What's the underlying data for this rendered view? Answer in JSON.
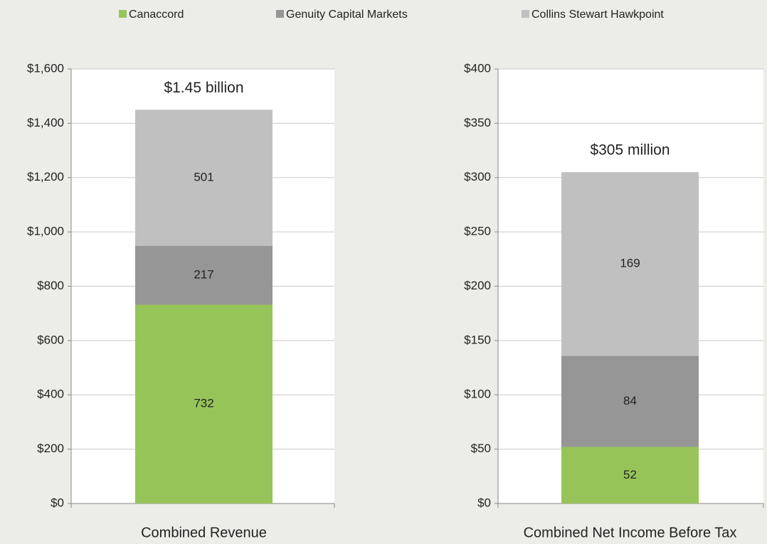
{
  "chart_data": [
    {
      "type": "bar",
      "stacked": true,
      "categories": [
        "Combined Revenue"
      ],
      "annotation": "$1.45 billion",
      "series": [
        {
          "name": "Canaccord",
          "color": "#97c459",
          "values": [
            732
          ]
        },
        {
          "name": "Genuity Capital Markets",
          "color": "#969696",
          "values": [
            217
          ]
        },
        {
          "name": "Collins Stewart Hawkpoint",
          "color": "#c0c0c0",
          "values": [
            501
          ]
        }
      ],
      "ylim": [
        0,
        1600
      ],
      "yticks": [
        {
          "value": 0,
          "label": "$0"
        },
        {
          "value": 200,
          "label": "$200"
        },
        {
          "value": 400,
          "label": "$400"
        },
        {
          "value": 600,
          "label": "$600"
        },
        {
          "value": 800,
          "label": "$800"
        },
        {
          "value": 1000,
          "label": "$1,000"
        },
        {
          "value": 1200,
          "label": "$1,200"
        },
        {
          "value": 1400,
          "label": "$1,400"
        },
        {
          "value": 1600,
          "label": "$1,600"
        }
      ],
      "grid": true
    },
    {
      "type": "bar",
      "stacked": true,
      "categories": [
        "Combined Net Income Before Tax"
      ],
      "annotation": "$305 million",
      "series": [
        {
          "values": [
            52
          ]
        },
        {
          "values": [
            84
          ]
        },
        {
          "values": [
            169
          ]
        }
      ],
      "ylim": [
        0,
        400
      ],
      "yticks": [
        {
          "value": 0,
          "label": "$0"
        },
        {
          "value": 50,
          "label": "$50"
        },
        {
          "value": 100,
          "label": "$100"
        },
        {
          "value": 150,
          "label": "$150"
        },
        {
          "value": 200,
          "label": "$200"
        },
        {
          "value": 250,
          "label": "$250"
        },
        {
          "value": 300,
          "label": "$300"
        },
        {
          "value": 350,
          "label": "$350"
        },
        {
          "value": 400,
          "label": "$400"
        }
      ],
      "grid": true
    }
  ]
}
